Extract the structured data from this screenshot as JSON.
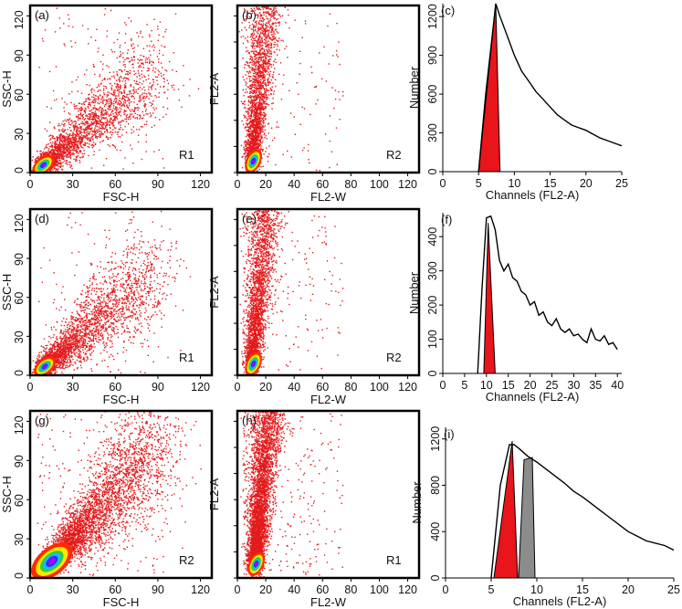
{
  "figure": {
    "colors": {
      "frame": "#000000",
      "dots": "#e31a1c",
      "dense_core": [
        "#ff2a00",
        "#ffe600",
        "#2bd13c",
        "#1fb7ff",
        "#2233ff",
        "#b000ff"
      ],
      "gate_fill": "#e8151b",
      "gate_fill_2": "#8c8c8c",
      "curve": "#000000"
    }
  },
  "chart_data": [
    {
      "id": "a",
      "type": "scatter",
      "label": "(a)",
      "xlabel": "FSC-H",
      "ylabel": "SSC-H",
      "region": "R1",
      "xlim": [
        0,
        128
      ],
      "ylim": [
        0,
        128
      ],
      "xticks": [
        0,
        30,
        60,
        90,
        120
      ],
      "yticks": [
        0,
        30,
        60,
        90,
        120
      ],
      "show_ytick_labels": [
        "0",
        "30",
        "60",
        "90",
        "120"
      ],
      "cloud": {
        "kind": "diagonal",
        "n": 2600,
        "core": [
          8,
          5
        ],
        "slope": 0.95,
        "spread": 0.22,
        "outliers": 120,
        "seed": 11
      }
    },
    {
      "id": "b",
      "type": "scatter",
      "label": "(b)",
      "xlabel": "FL2-W",
      "ylabel": "FL2-A",
      "region": "R2",
      "xlim": [
        0,
        128
      ],
      "ylim": [
        0,
        128
      ],
      "xticks": [
        0,
        20,
        40,
        60,
        80,
        100,
        120
      ],
      "yticks": [
        0,
        20,
        40,
        60,
        80,
        100,
        120
      ],
      "show_ytick_labels": [],
      "cloud": {
        "kind": "vertical",
        "n": 2400,
        "core": [
          10,
          8
        ],
        "xcenter": 20,
        "outliers": 160,
        "seed": 23
      }
    },
    {
      "id": "c",
      "type": "area",
      "label": "(c)",
      "xlabel": "Channels (FL2-A)",
      "ylabel": "Number",
      "xlim": [
        0,
        25
      ],
      "ylim": [
        0,
        1300
      ],
      "xticks": [
        0,
        5,
        10,
        15,
        20,
        25
      ],
      "yticks": [
        0,
        300,
        600,
        900,
        1200
      ],
      "x": [
        5,
        6,
        7,
        7.4,
        8,
        9,
        10,
        11,
        12,
        13,
        14,
        15,
        16,
        17,
        18,
        19,
        20,
        21,
        22,
        23,
        24,
        25
      ],
      "y": [
        0,
        600,
        1100,
        1300,
        1200,
        1050,
        900,
        780,
        700,
        620,
        560,
        500,
        440,
        400,
        360,
        340,
        320,
        290,
        260,
        240,
        220,
        200
      ],
      "gates": [
        {
          "x": [
            5,
            7.4,
            8
          ],
          "y": [
            0,
            1300,
            0
          ],
          "color": "red"
        }
      ]
    },
    {
      "id": "d",
      "type": "scatter",
      "label": "(d)",
      "xlabel": "FSC-H",
      "ylabel": "SSC-H",
      "region": "R1",
      "xlim": [
        0,
        128
      ],
      "ylim": [
        0,
        128
      ],
      "xticks": [
        0,
        30,
        60,
        90,
        120
      ],
      "yticks": [
        0,
        30,
        60,
        90,
        120
      ],
      "show_ytick_labels": [
        "0",
        "30",
        "60",
        "90",
        "120"
      ],
      "cloud": {
        "kind": "diagonal",
        "n": 2800,
        "core": [
          9,
          6
        ],
        "slope": 0.95,
        "spread": 0.24,
        "outliers": 140,
        "seed": 37
      }
    },
    {
      "id": "e",
      "type": "scatter",
      "label": "(e)",
      "xlabel": "FL2-W",
      "ylabel": "FL2-A",
      "region": "R2",
      "xlim": [
        0,
        128
      ],
      "ylim": [
        0,
        128
      ],
      "xticks": [
        0,
        20,
        40,
        60,
        80,
        100,
        120
      ],
      "yticks": [
        0,
        20,
        40,
        60,
        80,
        100,
        120
      ],
      "show_ytick_labels": [],
      "cloud": {
        "kind": "vertical",
        "n": 2600,
        "core": [
          10,
          8
        ],
        "xcenter": 20,
        "outliers": 200,
        "seed": 41
      }
    },
    {
      "id": "f",
      "type": "area",
      "label": "(f)",
      "xlabel": "Channels (FL2-A)",
      "ylabel": "Number",
      "xlim": [
        0,
        41
      ],
      "ylim": [
        0,
        470
      ],
      "xticks": [
        0,
        5,
        10,
        15,
        20,
        25,
        30,
        35,
        40
      ],
      "yticks": [
        0,
        100,
        200,
        300,
        400
      ],
      "x": [
        8,
        9,
        10,
        11,
        12,
        13,
        14,
        15,
        16,
        17,
        18,
        19,
        20,
        21,
        22,
        23,
        24,
        25,
        26,
        27,
        28,
        29,
        30,
        31,
        32,
        33,
        34,
        35,
        36,
        37,
        38,
        39,
        40
      ],
      "y": [
        0,
        250,
        455,
        460,
        420,
        330,
        300,
        320,
        280,
        270,
        240,
        230,
        200,
        210,
        170,
        180,
        150,
        140,
        160,
        130,
        120,
        130,
        110,
        115,
        100,
        90,
        130,
        100,
        95,
        110,
        85,
        90,
        70
      ],
      "gates": [
        {
          "x": [
            9.4,
            10.4,
            12
          ],
          "y": [
            0,
            440,
            0
          ],
          "color": "red"
        }
      ]
    },
    {
      "id": "g",
      "type": "scatter",
      "label": "(g)",
      "xlabel": "FSC-H",
      "ylabel": "SSC-H",
      "region": "R2",
      "xlim": [
        0,
        128
      ],
      "ylim": [
        0,
        128
      ],
      "xticks": [
        0,
        30,
        60,
        90,
        120
      ],
      "yticks": [
        0,
        30,
        60,
        90,
        120
      ],
      "show_ytick_labels": [
        "0",
        "30",
        "60",
        "90",
        "120"
      ],
      "cloud": {
        "kind": "diagonal",
        "n": 4200,
        "core": [
          14,
          12
        ],
        "slope": 1.2,
        "spread": 0.32,
        "outliers": 260,
        "seed": 53
      }
    },
    {
      "id": "h",
      "type": "scatter",
      "label": "(h)",
      "xlabel": "FL2-W",
      "ylabel": "FL2-A",
      "region": "R1",
      "xlim": [
        0,
        128
      ],
      "ylim": [
        0,
        128
      ],
      "xticks": [
        0,
        20,
        40,
        60,
        80,
        100,
        120
      ],
      "yticks": [
        0,
        20,
        40,
        60,
        80,
        100,
        120
      ],
      "show_ytick_labels": [],
      "cloud": {
        "kind": "vertical",
        "n": 4200,
        "core": [
          12,
          10
        ],
        "xcenter": 22,
        "outliers": 320,
        "seed": 67
      }
    },
    {
      "id": "i",
      "type": "area",
      "label": "(i)",
      "xlabel": "Channels (FL2-A)",
      "ylabel": "Number",
      "xlim": [
        0,
        25
      ],
      "ylim": [
        0,
        1300
      ],
      "xticks": [
        0,
        5,
        10,
        15,
        20,
        25
      ],
      "yticks": [
        0,
        400,
        800,
        1200
      ],
      "x": [
        5,
        6,
        7,
        7.5,
        8,
        9,
        10,
        11,
        12,
        13,
        14,
        15,
        16,
        17,
        18,
        19,
        20,
        21,
        22,
        23,
        24,
        25
      ],
      "y": [
        0,
        800,
        1150,
        1150,
        1120,
        1050,
        1000,
        940,
        880,
        820,
        750,
        700,
        640,
        580,
        520,
        460,
        400,
        360,
        320,
        300,
        280,
        240
      ],
      "gates": [
        {
          "x": [
            5.3,
            7.3,
            7.9
          ],
          "y": [
            0,
            1180,
            0
          ],
          "color": "red"
        },
        {
          "x": [
            8,
            8.6,
            9.5,
            9.8
          ],
          "y": [
            0,
            1020,
            1040,
            0
          ],
          "color": "gray"
        }
      ]
    }
  ]
}
